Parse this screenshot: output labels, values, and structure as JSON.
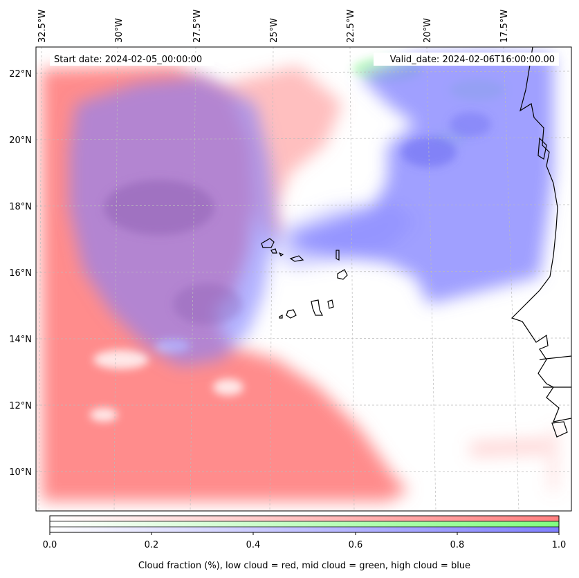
{
  "map": {
    "start_label": "Start date: 2024-02-05_00:00:00",
    "valid_label": "Valid_date: 2024-02-06T16:00:00.00",
    "lon_labels": [
      "32.5°W",
      "30°W",
      "27.5°W",
      "25°W",
      "22.5°W",
      "20°W",
      "17.5°W"
    ],
    "lat_labels": [
      "22°N",
      "20°N",
      "18°N",
      "16°N",
      "14°N",
      "12°N",
      "10°N"
    ]
  },
  "colorbar": {
    "ticks": [
      "0.0",
      "0.2",
      "0.4",
      "0.6",
      "0.8",
      "1.0"
    ],
    "label": "Cloud fraction (%), low cloud = red, mid cloud = green, high cloud = blue"
  },
  "colors": {
    "low_cloud": "#ff8080",
    "mid_cloud": "#80ff80",
    "high_cloud": "#8080ff",
    "coast": "#000000",
    "grid": "#bbbbbb"
  }
}
